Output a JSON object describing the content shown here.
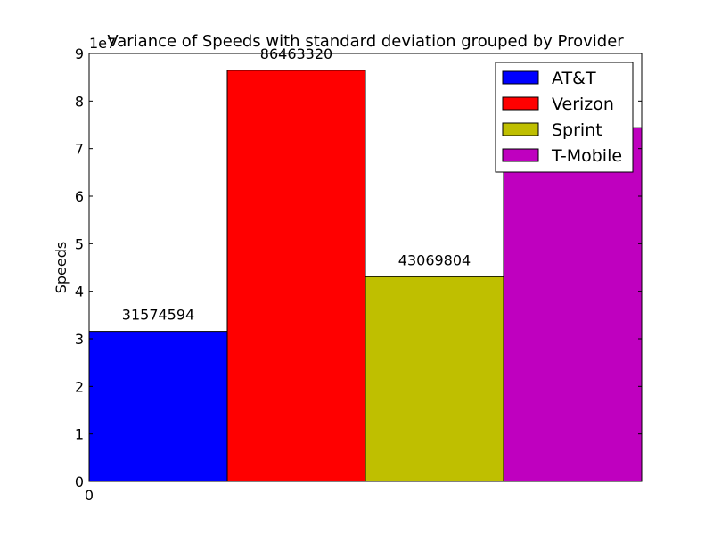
{
  "chart_data": {
    "type": "bar",
    "title": "Variance of Speeds with standard deviation grouped by Provider",
    "ylabel": "Speeds",
    "xlabel": "",
    "offset_label": "1e7",
    "x_tick_label": "0",
    "ylim": [
      0,
      90000000
    ],
    "y_ticks": [
      0,
      10000000,
      20000000,
      30000000,
      40000000,
      50000000,
      60000000,
      70000000,
      80000000,
      90000000
    ],
    "y_tick_labels": [
      "0",
      "1",
      "2",
      "3",
      "4",
      "5",
      "6",
      "7",
      "8",
      "9"
    ],
    "legend_position": "top-right",
    "series": [
      {
        "name": "AT&T",
        "value": 31574594,
        "label": "31574594",
        "color": "#0000ff"
      },
      {
        "name": "Verizon",
        "value": 86463320,
        "label": "86463320",
        "color": "#ff0000"
      },
      {
        "name": "Sprint",
        "value": 43069804,
        "label": "43069804",
        "color": "#bfbf00"
      },
      {
        "name": "T-Mobile",
        "value": 74400000,
        "label": "",
        "color": "#bf00bf"
      }
    ]
  }
}
